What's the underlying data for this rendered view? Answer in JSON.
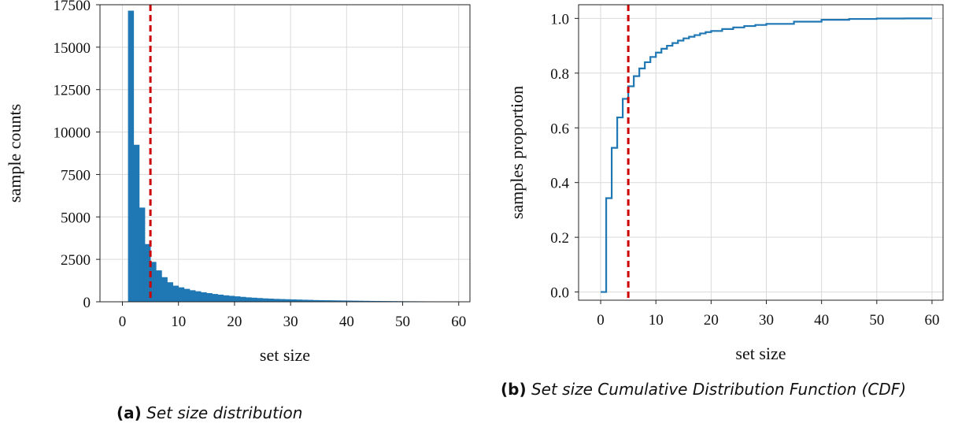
{
  "chart_data": [
    {
      "type": "bar",
      "panel": "a",
      "xlabel": "set size",
      "ylabel": "sample counts",
      "xlim": [
        -4,
        62
      ],
      "ylim": [
        0,
        17500
      ],
      "xticks": [
        0,
        10,
        20,
        30,
        40,
        50,
        60
      ],
      "yticks": [
        0,
        2500,
        5000,
        7500,
        10000,
        12500,
        15000,
        17500
      ],
      "grid": true,
      "threshold_line": 5,
      "bin_width": 1,
      "x": [
        1,
        2,
        3,
        4,
        5,
        6,
        7,
        8,
        9,
        10,
        11,
        12,
        13,
        14,
        15,
        16,
        17,
        18,
        19,
        20,
        21,
        22,
        23,
        24,
        25,
        26,
        27,
        28,
        29,
        30,
        31,
        32,
        33,
        34,
        35,
        36,
        37,
        38,
        39,
        40,
        41,
        42,
        43,
        44,
        45,
        46,
        47,
        48,
        49,
        50,
        51,
        52,
        53,
        54,
        55,
        56,
        57,
        58,
        59,
        60
      ],
      "values": [
        17150,
        9250,
        5550,
        3400,
        2350,
        1850,
        1450,
        1150,
        950,
        850,
        760,
        680,
        620,
        560,
        510,
        460,
        420,
        380,
        350,
        320,
        290,
        260,
        240,
        220,
        200,
        185,
        170,
        160,
        150,
        140,
        130,
        120,
        112,
        100,
        95,
        90,
        85,
        80,
        75,
        70,
        65,
        60,
        55,
        50,
        47,
        44,
        41,
        38,
        35,
        32,
        30,
        28,
        26,
        24,
        22,
        20,
        18,
        16,
        14,
        12
      ],
      "color": "#1f77b4",
      "line_color": "#cc0000",
      "caption_tag": "(a)",
      "caption": "Set size distribution"
    },
    {
      "type": "line",
      "panel": "b",
      "xlabel": "set size",
      "ylabel": "samples proportion",
      "xlim": [
        -4,
        62
      ],
      "ylim": [
        -0.03,
        1.05
      ],
      "xticks": [
        0,
        10,
        20,
        30,
        40,
        50,
        60
      ],
      "yticks": [
        0.0,
        0.2,
        0.4,
        0.6,
        0.8,
        1.0
      ],
      "grid": true,
      "threshold_line": 5,
      "step": true,
      "x": [
        0,
        1,
        2,
        3,
        4,
        5,
        6,
        7,
        8,
        9,
        10,
        11,
        12,
        13,
        14,
        15,
        16,
        17,
        18,
        19,
        20,
        22,
        24,
        26,
        28,
        30,
        35,
        40,
        45,
        50,
        55,
        60
      ],
      "values": [
        0.0,
        0.343,
        0.527,
        0.638,
        0.706,
        0.752,
        0.789,
        0.817,
        0.84,
        0.859,
        0.875,
        0.889,
        0.9,
        0.91,
        0.919,
        0.927,
        0.933,
        0.939,
        0.945,
        0.95,
        0.954,
        0.961,
        0.967,
        0.972,
        0.976,
        0.98,
        0.988,
        0.995,
        0.998,
        0.9995,
        1.0,
        1.0
      ],
      "color": "#1f77b4",
      "line_color": "#cc0000",
      "caption_tag": "(b)",
      "caption": "Set size Cumulative Distribution Function (CDF)"
    }
  ]
}
